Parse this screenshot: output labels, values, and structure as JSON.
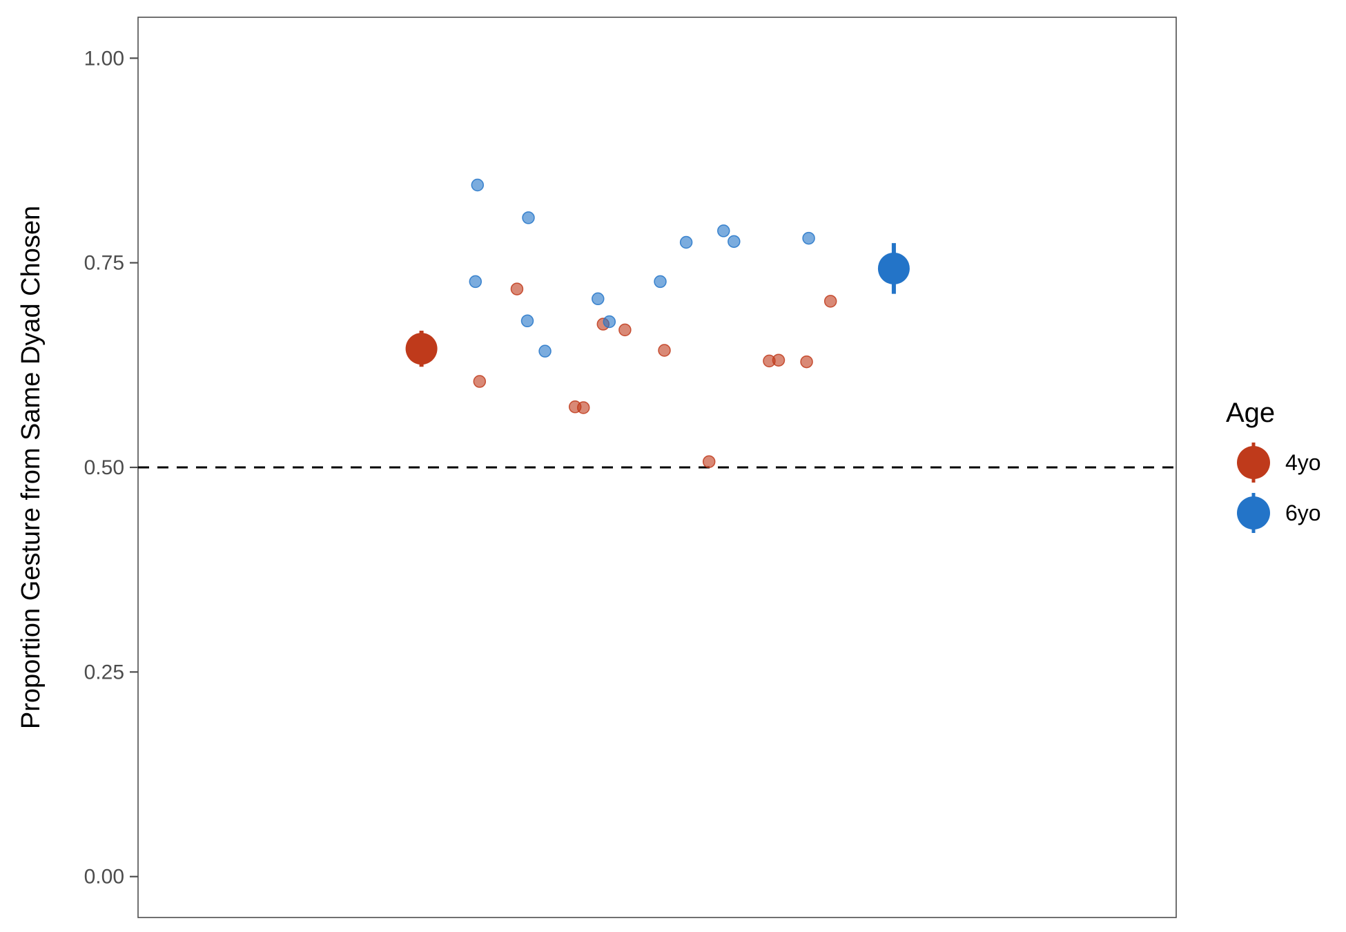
{
  "chart_data": {
    "type": "scatter",
    "title": "",
    "xlabel": "",
    "ylabel": "Proportion Gesture from Same Dyad Chosen",
    "ylim": [
      -0.05,
      1.05
    ],
    "yticks": [
      0.0,
      0.25,
      0.5,
      0.75,
      1.0
    ],
    "ytick_labels": [
      "0.00",
      "0.25",
      "0.50",
      "0.75",
      "1.00"
    ],
    "xlim": [
      0,
      1
    ],
    "reference_line": {
      "y": 0.5,
      "style": "dashed",
      "color": "#000000"
    },
    "grid": false,
    "legend": {
      "title": "Age",
      "placement": "right"
    },
    "series": [
      {
        "name": "4yo",
        "color": "#bf3a1b",
        "mean": {
          "x": 0.273,
          "y": 0.645,
          "ymin": 0.623,
          "ymax": 0.667
        },
        "points": [
          {
            "x": 0.329,
            "y": 0.605
          },
          {
            "x": 0.365,
            "y": 0.718
          },
          {
            "x": 0.421,
            "y": 0.574
          },
          {
            "x": 0.429,
            "y": 0.573
          },
          {
            "x": 0.448,
            "y": 0.675
          },
          {
            "x": 0.469,
            "y": 0.668
          },
          {
            "x": 0.507,
            "y": 0.643
          },
          {
            "x": 0.55,
            "y": 0.507
          },
          {
            "x": 0.608,
            "y": 0.63
          },
          {
            "x": 0.617,
            "y": 0.631
          },
          {
            "x": 0.644,
            "y": 0.629
          },
          {
            "x": 0.667,
            "y": 0.703
          }
        ]
      },
      {
        "name": "6yo",
        "color": "#2374c8",
        "mean": {
          "x": 0.728,
          "y": 0.743,
          "ymin": 0.712,
          "ymax": 0.774
        },
        "points": [
          {
            "x": 0.325,
            "y": 0.727
          },
          {
            "x": 0.327,
            "y": 0.845
          },
          {
            "x": 0.375,
            "y": 0.679
          },
          {
            "x": 0.376,
            "y": 0.805
          },
          {
            "x": 0.392,
            "y": 0.642
          },
          {
            "x": 0.443,
            "y": 0.706
          },
          {
            "x": 0.454,
            "y": 0.678
          },
          {
            "x": 0.503,
            "y": 0.727
          },
          {
            "x": 0.528,
            "y": 0.775
          },
          {
            "x": 0.564,
            "y": 0.789
          },
          {
            "x": 0.574,
            "y": 0.776
          },
          {
            "x": 0.646,
            "y": 0.78
          }
        ]
      }
    ]
  }
}
